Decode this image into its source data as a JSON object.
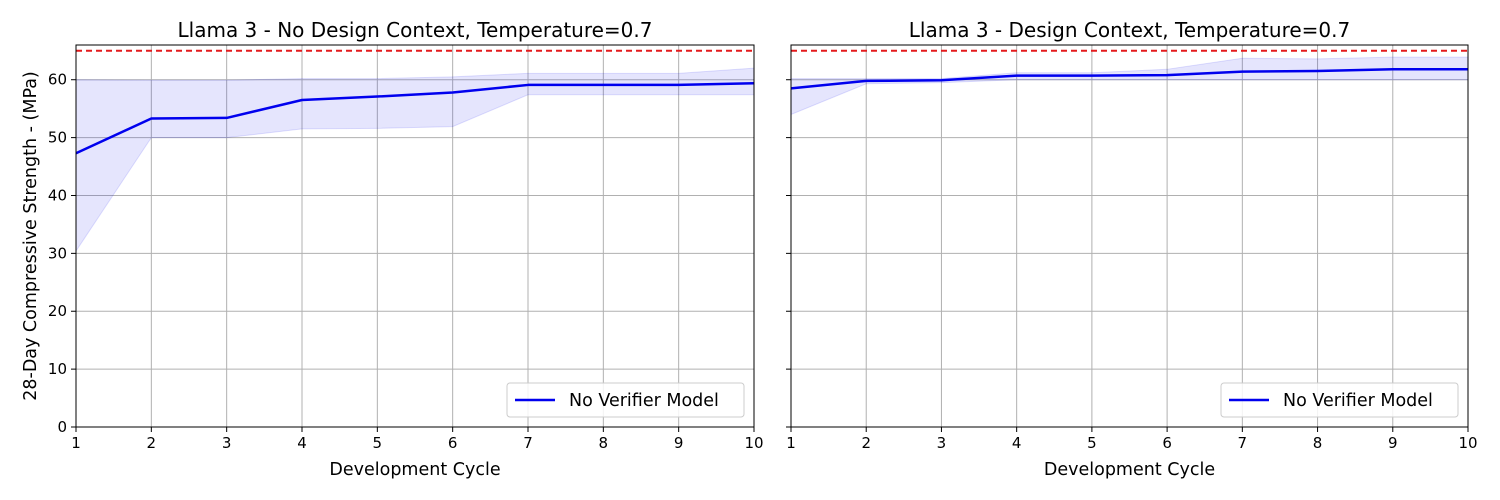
{
  "ylabel": "28-Day Compressive Strength - (MPa)",
  "chart_data": [
    {
      "type": "line",
      "title": "Llama 3 -  No Design Context, Temperature=0.7",
      "xlabel": "Development Cycle",
      "ylabel": "28-Day Compressive Strength - (MPa)",
      "x": [
        1,
        2,
        3,
        4,
        5,
        6,
        7,
        8,
        9,
        10
      ],
      "xlim": [
        1,
        10
      ],
      "ylim": [
        0,
        66
      ],
      "xticks": [
        1,
        2,
        3,
        4,
        5,
        6,
        7,
        8,
        9,
        10
      ],
      "yticks": [
        0,
        10,
        20,
        30,
        40,
        50,
        60
      ],
      "grid": true,
      "legend_position": "lower-right",
      "reference_line": {
        "y": 65,
        "color": "#e41a1c",
        "style": "dashed"
      },
      "series": [
        {
          "name": "No Verifier Model",
          "color": "#0000ee",
          "values": [
            47.3,
            53.3,
            53.4,
            56.5,
            57.1,
            57.8,
            59.1,
            59.1,
            59.1,
            59.4
          ],
          "band_low": [
            30.4,
            50.0,
            50.0,
            51.5,
            51.6,
            51.9,
            57.4,
            57.4,
            57.4,
            57.4
          ],
          "band_high": [
            60.0,
            59.9,
            59.9,
            60.2,
            60.2,
            60.5,
            61.1,
            61.1,
            61.1,
            62.0
          ]
        }
      ]
    },
    {
      "type": "line",
      "title": "Llama 3 -  Design Context, Temperature=0.7",
      "xlabel": "Development Cycle",
      "ylabel": "",
      "x": [
        1,
        2,
        3,
        4,
        5,
        6,
        7,
        8,
        9,
        10
      ],
      "xlim": [
        1,
        10
      ],
      "ylim": [
        0,
        66
      ],
      "xticks": [
        1,
        2,
        3,
        4,
        5,
        6,
        7,
        8,
        9,
        10
      ],
      "yticks": [
        0,
        10,
        20,
        30,
        40,
        50,
        60
      ],
      "grid": true,
      "legend_position": "lower-right",
      "reference_line": {
        "y": 65,
        "color": "#e41a1c",
        "style": "dashed"
      },
      "series": [
        {
          "name": "No Verifier Model",
          "color": "#0000ee",
          "values": [
            58.5,
            59.8,
            59.9,
            60.7,
            60.7,
            60.8,
            61.4,
            61.5,
            61.8,
            61.8
          ],
          "band_low": [
            54.0,
            59.3,
            59.5,
            60.0,
            60.0,
            60.0,
            60.0,
            60.0,
            60.0,
            60.0
          ],
          "band_high": [
            60.2,
            60.2,
            60.2,
            61.2,
            61.2,
            61.8,
            63.7,
            63.6,
            63.9,
            63.9
          ]
        }
      ]
    }
  ]
}
